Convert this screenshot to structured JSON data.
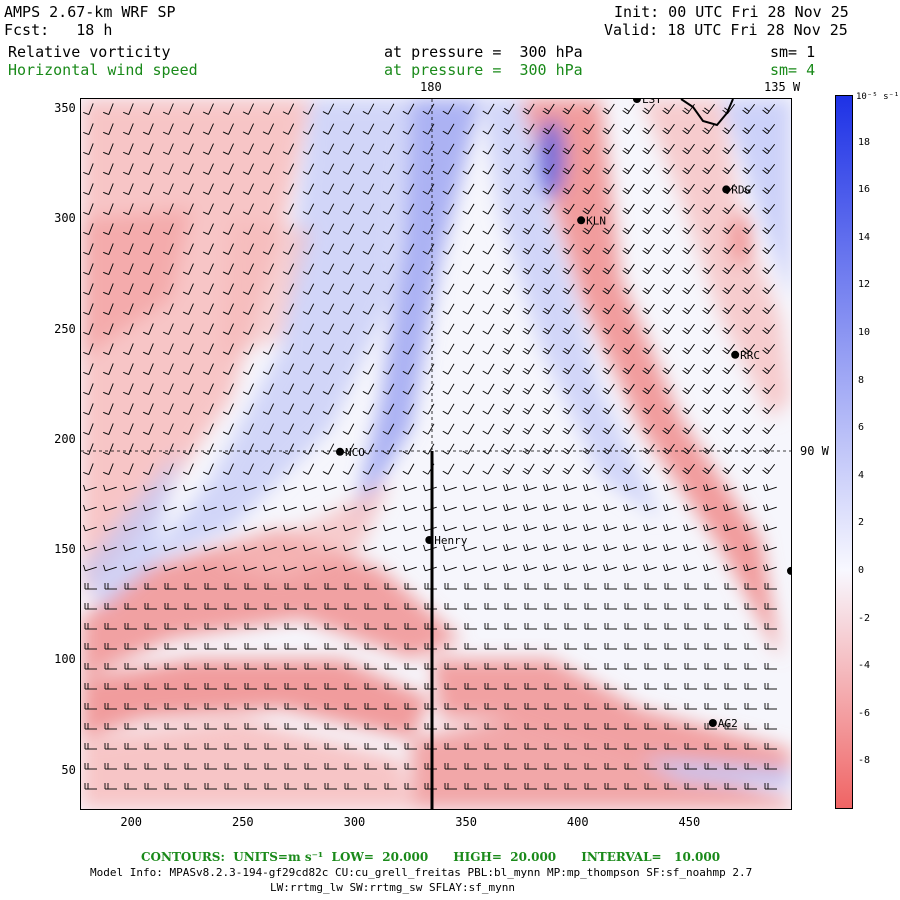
{
  "header": {
    "model": "AMPS 2.67-km WRF SP",
    "fcst": "Fcst:   18 h",
    "init": "Init: 00 UTC Fri 28 Nov 25",
    "valid": "Valid: 18 UTC Fri 28 Nov 25",
    "field1_name": "Relative vorticity",
    "field1_level": "at pressure =  300 hPa",
    "field1_sm": "sm= 1",
    "field2_name": "Horizontal wind speed",
    "field2_level": "at pressure =  300 hPa",
    "field2_sm": "sm= 4"
  },
  "map": {
    "meridian_180": "180",
    "meridian_135w": "135 W",
    "parallel_90w": "90 W",
    "stations": [
      {
        "label": "NCO",
        "x": 293,
        "y": 195
      },
      {
        "label": "Henry",
        "x": 333,
        "y": 155
      },
      {
        "label": "KLN",
        "x": 401,
        "y": 300
      },
      {
        "label": "RDG",
        "x": 466,
        "y": 314
      },
      {
        "label": "RRC",
        "x": 470,
        "y": 239
      },
      {
        "label": "AG2",
        "x": 460,
        "y": 72
      },
      {
        "label": "LST",
        "x": 426,
        "y": 355
      },
      {
        "label": "",
        "x": 495,
        "y": 141
      }
    ]
  },
  "chart_data": {
    "type": "heatmap",
    "x_ticks": [
      "200",
      "250",
      "300",
      "350",
      "400",
      "450"
    ],
    "y_ticks": [
      "50",
      "100",
      "150",
      "200",
      "250",
      "300",
      "350"
    ],
    "xlim": [
      177,
      495
    ],
    "ylim": [
      33,
      355
    ],
    "colorbar": {
      "unit": "10⁻⁵ s⁻¹",
      "ticks": [
        "18",
        "16",
        "14",
        "12",
        "10",
        "8",
        "6",
        "4",
        "2",
        "0",
        "-2",
        "-4",
        "-6",
        "-8"
      ],
      "range": [
        -10,
        20
      ],
      "colors": {
        "positive": "#1e32e6",
        "neutral": "#f8f8ff",
        "negative": "#f06464"
      }
    }
  },
  "footer": {
    "contours": "CONTOURS:  UNITS=m s⁻¹  LOW=  20.000      HIGH=  20.000      INTERVAL=   10.000",
    "model_info": "Model Info: MPASv8.2.3-194-gf29cd82c CU:cu_grell_freitas PBL:bl_mynn MP:mp_thompson SF:sf_noahmp 2.7",
    "model_info2": "LW:rrtmg_lw SW:rrtmg_sw SFLAY:sf_mynn"
  }
}
